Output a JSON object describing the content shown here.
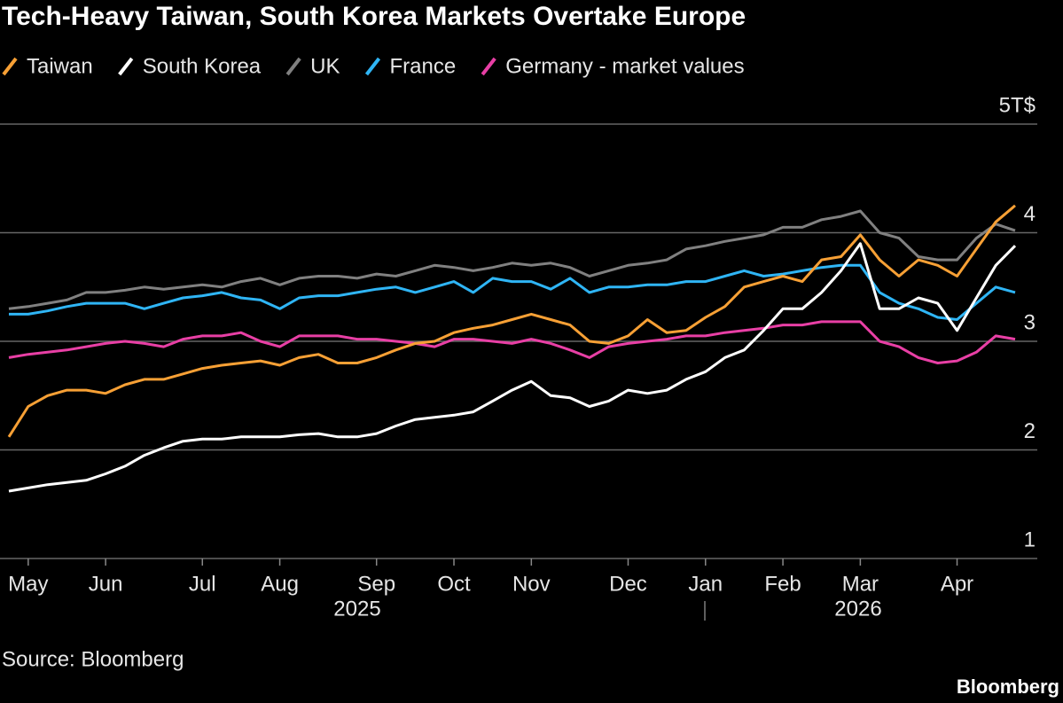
{
  "chart_data": {
    "type": "line",
    "title": "Tech-Heavy Taiwan, South Korea Markets Overtake Europe",
    "source": "Source: Bloomberg",
    "logo": "Bloomberg",
    "annotations": [
      "2025",
      "2026"
    ],
    "categories": [
      null,
      "May",
      null,
      null,
      null,
      "Jun",
      null,
      null,
      null,
      null,
      "Jul",
      null,
      null,
      null,
      "Aug",
      null,
      null,
      null,
      null,
      "Sep",
      null,
      null,
      null,
      "Oct",
      null,
      null,
      null,
      "Nov",
      null,
      null,
      null,
      null,
      "Dec",
      null,
      null,
      null,
      "Jan",
      null,
      null,
      null,
      "Feb",
      null,
      null,
      null,
      "Mar",
      null,
      null,
      null,
      null,
      "Apr",
      null,
      null,
      null
    ],
    "series": [
      {
        "name": "Taiwan",
        "color": "#f7a035",
        "values": [
          2.12,
          2.4,
          2.5,
          2.55,
          2.55,
          2.52,
          2.6,
          2.65,
          2.65,
          2.7,
          2.75,
          2.78,
          2.8,
          2.82,
          2.78,
          2.85,
          2.88,
          2.8,
          2.8,
          2.85,
          2.92,
          2.98,
          3.0,
          3.08,
          3.12,
          3.15,
          3.2,
          3.25,
          3.2,
          3.15,
          3.0,
          2.98,
          3.05,
          3.2,
          3.08,
          3.1,
          3.22,
          3.32,
          3.5,
          3.55,
          3.6,
          3.55,
          3.75,
          3.78,
          3.98,
          3.75,
          3.6,
          3.75,
          3.7,
          3.6,
          3.85,
          4.1,
          4.25
        ]
      },
      {
        "name": "South Korea",
        "color": "#ffffff",
        "values": [
          1.62,
          1.65,
          1.68,
          1.7,
          1.72,
          1.78,
          1.85,
          1.95,
          2.02,
          2.08,
          2.1,
          2.1,
          2.12,
          2.12,
          2.12,
          2.14,
          2.15,
          2.12,
          2.12,
          2.15,
          2.22,
          2.28,
          2.3,
          2.32,
          2.35,
          2.45,
          2.55,
          2.63,
          2.5,
          2.48,
          2.4,
          2.45,
          2.55,
          2.52,
          2.55,
          2.65,
          2.72,
          2.85,
          2.92,
          3.1,
          3.3,
          3.3,
          3.45,
          3.65,
          3.9,
          3.3,
          3.3,
          3.4,
          3.35,
          3.1,
          3.4,
          3.7,
          3.88
        ]
      },
      {
        "name": "UK",
        "color": "#808080",
        "values": [
          3.3,
          3.32,
          3.35,
          3.38,
          3.45,
          3.45,
          3.47,
          3.5,
          3.48,
          3.5,
          3.52,
          3.5,
          3.55,
          3.58,
          3.52,
          3.58,
          3.6,
          3.6,
          3.58,
          3.62,
          3.6,
          3.65,
          3.7,
          3.68,
          3.65,
          3.68,
          3.72,
          3.7,
          3.72,
          3.68,
          3.6,
          3.65,
          3.7,
          3.72,
          3.75,
          3.85,
          3.88,
          3.92,
          3.95,
          3.98,
          4.05,
          4.05,
          4.12,
          4.15,
          4.2,
          4.0,
          3.95,
          3.78,
          3.75,
          3.75,
          3.95,
          4.08,
          4.02
        ]
      },
      {
        "name": "France",
        "color": "#2fb5f5",
        "values": [
          3.25,
          3.25,
          3.28,
          3.32,
          3.35,
          3.35,
          3.35,
          3.3,
          3.35,
          3.4,
          3.42,
          3.45,
          3.4,
          3.38,
          3.3,
          3.4,
          3.42,
          3.42,
          3.45,
          3.48,
          3.5,
          3.45,
          3.5,
          3.55,
          3.45,
          3.58,
          3.55,
          3.55,
          3.48,
          3.58,
          3.45,
          3.5,
          3.5,
          3.52,
          3.52,
          3.55,
          3.55,
          3.6,
          3.65,
          3.6,
          3.62,
          3.65,
          3.68,
          3.7,
          3.7,
          3.45,
          3.35,
          3.3,
          3.22,
          3.2,
          3.35,
          3.5,
          3.45
        ]
      },
      {
        "name": "Germany - market values",
        "color": "#e83fa5",
        "values": [
          2.85,
          2.88,
          2.9,
          2.92,
          2.95,
          2.98,
          3.0,
          2.98,
          2.95,
          3.02,
          3.05,
          3.05,
          3.08,
          3.0,
          2.95,
          3.05,
          3.05,
          3.05,
          3.02,
          3.02,
          3.0,
          2.98,
          2.95,
          3.02,
          3.02,
          3.0,
          2.98,
          3.02,
          2.98,
          2.92,
          2.85,
          2.95,
          2.98,
          3.0,
          3.02,
          3.05,
          3.05,
          3.08,
          3.1,
          3.12,
          3.15,
          3.15,
          3.18,
          3.18,
          3.18,
          3.0,
          2.95,
          2.85,
          2.8,
          2.82,
          2.9,
          3.05,
          3.02
        ]
      }
    ],
    "ylim": [
      1,
      5
    ],
    "yticks": [
      1,
      2,
      3,
      4,
      {
        "value": 5,
        "label": "5T$"
      }
    ],
    "grid": true
  }
}
